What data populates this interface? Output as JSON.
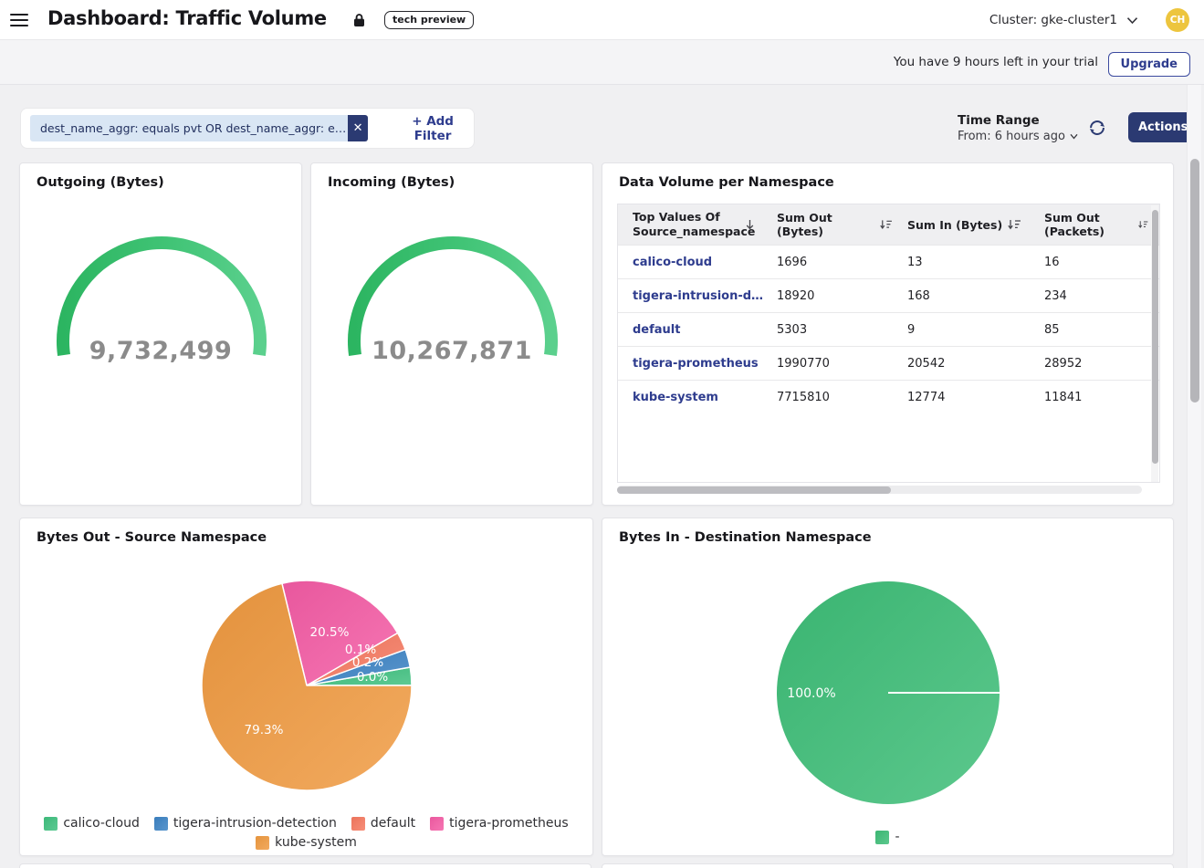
{
  "brand": {
    "accent_navy": "#2b3a72",
    "link_navy": "#2e3c8e",
    "chip_bg": "#d9e6f4",
    "avatar_bg": "#edc53e",
    "gauge_green_start": "#2cb561",
    "gauge_green_end": "#5bd08d",
    "page_bg": "#f0f0f2"
  },
  "header": {
    "title": "Dashboard: Traffic Volume",
    "tech_preview_badge": "tech preview",
    "cluster": "Cluster: gke-cluster1",
    "avatar_initials": "CH"
  },
  "trial_banner": {
    "message": "You have 9 hours left in your trial",
    "upgrade_label": "Upgrade"
  },
  "filter_bar": {
    "filter_chip": "dest_name_aggr: equals pvt OR dest_name_aggr: e…",
    "remove_filter": "✕",
    "add_filter": "+ Add Filter",
    "time_range_label": "Time Range",
    "time_range_value": "From: 6 hours ago",
    "actions": "Actions"
  },
  "table": {
    "title": "Data Volume per Namespace",
    "columns": [
      "Top Values Of Source_namespace",
      "Sum Out (Bytes)",
      "Sum In (Bytes)",
      "Sum Out (Packets)"
    ],
    "rows": [
      [
        "calico-cloud",
        "1696",
        "13",
        "16"
      ],
      [
        "tigera-intrusion-d…",
        "18920",
        "168",
        "234"
      ],
      [
        "default",
        "5303",
        "9",
        "85"
      ],
      [
        "tigera-prometheus",
        "1990770",
        "20542",
        "28952"
      ],
      [
        "kube-system",
        "7715810",
        "12774",
        "11841"
      ]
    ]
  },
  "chart_data": [
    {
      "type": "gauge",
      "title": "Outgoing (Bytes)",
      "value": 9732499,
      "label": "9,732,499",
      "color_start": "#2cb561",
      "color_end": "#5bd08d"
    },
    {
      "type": "gauge",
      "title": "Incoming (Bytes)",
      "value": 10267871,
      "label": "10,267,871",
      "color_start": "#2cb561",
      "color_end": "#5bd08d"
    },
    {
      "type": "pie",
      "title": "Bytes Out - Source Namespace",
      "legend_position": "bottom",
      "series": [
        {
          "name": "calico-cloud",
          "value": 1696,
          "percent": 0.0,
          "label": "0.0%",
          "color": "#3ec07e"
        },
        {
          "name": "tigera-intrusion-detection",
          "value": 18920,
          "percent": 0.2,
          "label": "0.2%",
          "color": "#3b82c4"
        },
        {
          "name": "default",
          "value": 5303,
          "percent": 0.1,
          "label": "0.1%",
          "color": "#f5785f"
        },
        {
          "name": "tigera-prometheus",
          "value": 1990770,
          "percent": 20.5,
          "label": "20.5%",
          "color": "#f45ca5"
        },
        {
          "name": "kube-system",
          "value": 7715810,
          "percent": 79.3,
          "label": "79.3%",
          "color": "#ef9a40"
        }
      ]
    },
    {
      "type": "pie",
      "title": "Bytes In - Destination Namespace",
      "legend_position": "bottom",
      "series": [
        {
          "name": "-",
          "value": 10267871,
          "percent": 100.0,
          "label": "100.0%",
          "color": "#3dbd77"
        }
      ]
    }
  ]
}
